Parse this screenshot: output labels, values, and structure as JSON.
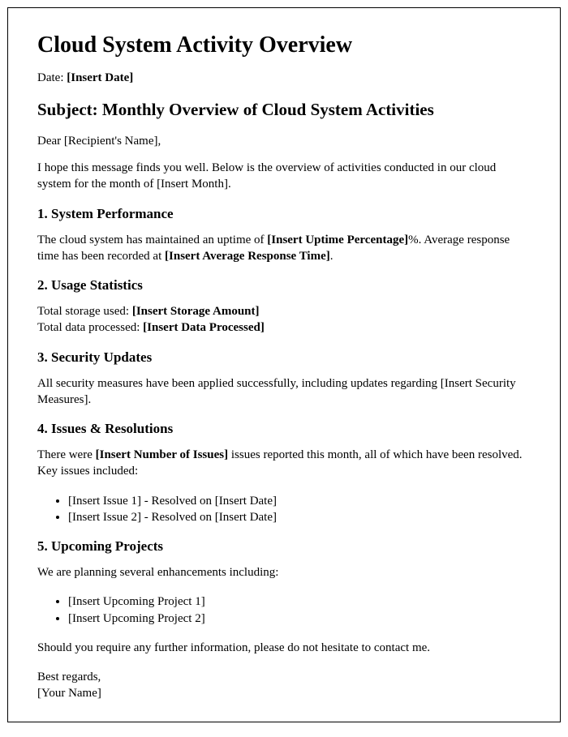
{
  "title": "Cloud System Activity Overview",
  "date_label": "Date: ",
  "date_value": "[Insert Date]",
  "subject_prefix": "Subject: ",
  "subject_text": "Monthly Overview of Cloud System Activities",
  "greeting": "Dear [Recipient's Name],",
  "intro_1": "I hope this message finds you well. Below is the overview of activities conducted in our cloud system for the month of [Insert Month].",
  "sections": {
    "s1": {
      "heading": "1. System Performance",
      "text_a": "The cloud system has maintained an uptime of ",
      "bold_a": "[Insert Uptime Percentage]",
      "text_b": "%. Average response time has been recorded at ",
      "bold_b": "[Insert Average Response Time]",
      "text_c": "."
    },
    "s2": {
      "heading": "2. Usage Statistics",
      "line1_label": "Total storage used: ",
      "line1_value": "[Insert Storage Amount]",
      "line2_label": "Total data processed: ",
      "line2_value": "[Insert Data Processed]"
    },
    "s3": {
      "heading": "3. Security Updates",
      "text": "All security measures have been applied successfully, including updates regarding [Insert Security Measures]."
    },
    "s4": {
      "heading": "4. Issues & Resolutions",
      "intro_a": "There were ",
      "intro_bold": "[Insert Number of Issues]",
      "intro_b": " issues reported this month, all of which have been resolved. Key issues included:",
      "items": [
        "[Insert Issue 1] - Resolved on [Insert Date]",
        "[Insert Issue 2] - Resolved on [Insert Date]"
      ]
    },
    "s5": {
      "heading": "5. Upcoming Projects",
      "intro": "We are planning several enhancements including:",
      "items": [
        "[Insert Upcoming Project 1]",
        "[Insert Upcoming Project 2]"
      ]
    }
  },
  "closing_line": "Should you require any further information, please do not hesitate to contact me.",
  "signoff": "Best regards,",
  "sender": "[Your Name]"
}
